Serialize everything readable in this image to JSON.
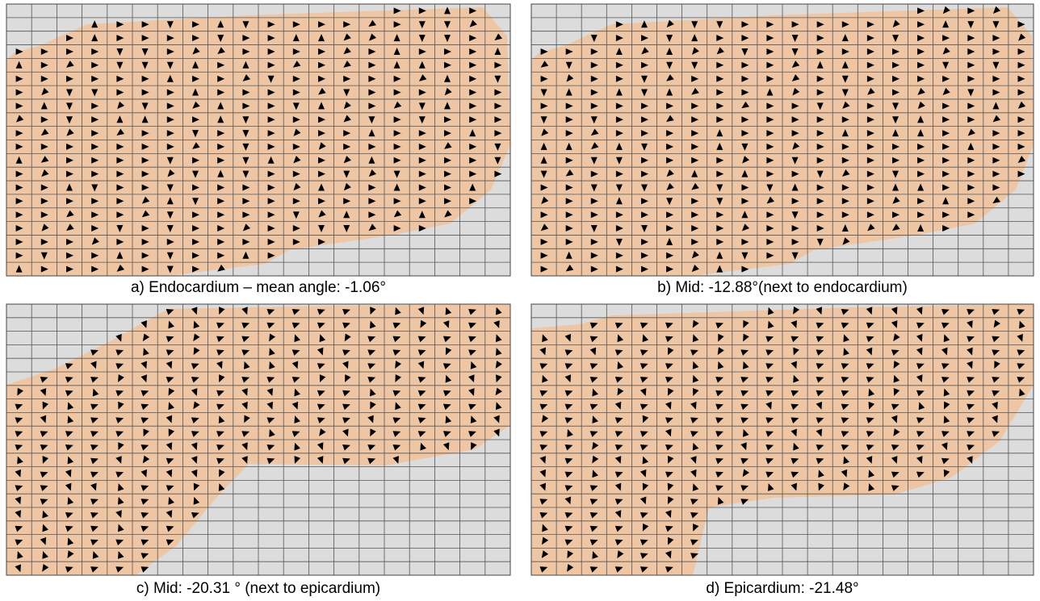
{
  "panels": [
    {
      "caption": "a) Endocardium – mean angle: -1.06°"
    },
    {
      "caption": "b) Mid: -12.88°(next to endocardium)"
    },
    {
      "caption": "c) Mid: -20.31 ° (next to epicardium)"
    },
    {
      "caption": "d) Epicardium: -21.48°"
    }
  ]
}
